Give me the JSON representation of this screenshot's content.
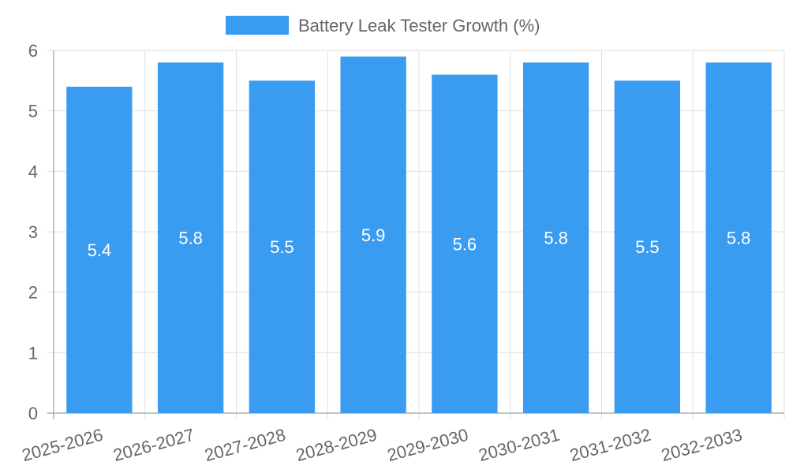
{
  "chart_data": {
    "type": "bar",
    "title": "",
    "xlabel": "",
    "ylabel": "",
    "categories": [
      "2025-2026",
      "2026-2027",
      "2027-2028",
      "2028-2029",
      "2029-2030",
      "2030-2031",
      "2031-2032",
      "2032-2033"
    ],
    "series": [
      {
        "name": "Battery Leak Tester Growth (%)",
        "values": [
          5.4,
          5.8,
          5.5,
          5.9,
          5.6,
          5.8,
          5.5,
          5.8
        ],
        "color": "#3a9cf0"
      }
    ],
    "ylim": [
      0,
      6
    ],
    "yticks": [
      0,
      1,
      2,
      3,
      4,
      5,
      6
    ],
    "grid": true,
    "legend_position": "top-center",
    "data_labels": true
  },
  "colors": {
    "bar": "#3a9cf0",
    "grid": "#e0e0e0",
    "axis": "#b0b0b0",
    "text": "#666666",
    "data_label": "#ffffff"
  }
}
